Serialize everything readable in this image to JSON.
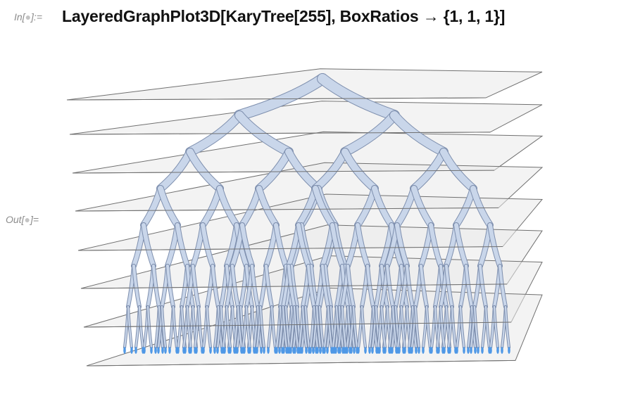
{
  "notebook": {
    "input_cell": {
      "label_prefix": "In[",
      "label_dot": "●",
      "label_suffix": "]:=",
      "code": "LayeredGraphPlot3D[KaryTree[255], BoxRatios → {1, 1, 1}]"
    },
    "output_cell": {
      "label_prefix": "Out[",
      "label_dot": "●",
      "label_suffix": "]="
    }
  },
  "graphic": {
    "type": "3d-layered-tree",
    "tree": "KaryTree[255]",
    "branching": 2,
    "levels": 8,
    "layer_planes": 8,
    "colors": {
      "plane_fill": "#e9e9e9",
      "plane_edge": "#707070",
      "tube_fill": "#c9d6ea",
      "tube_edge": "#7e8fae",
      "leaf_tip": "#4f98e6"
    }
  }
}
